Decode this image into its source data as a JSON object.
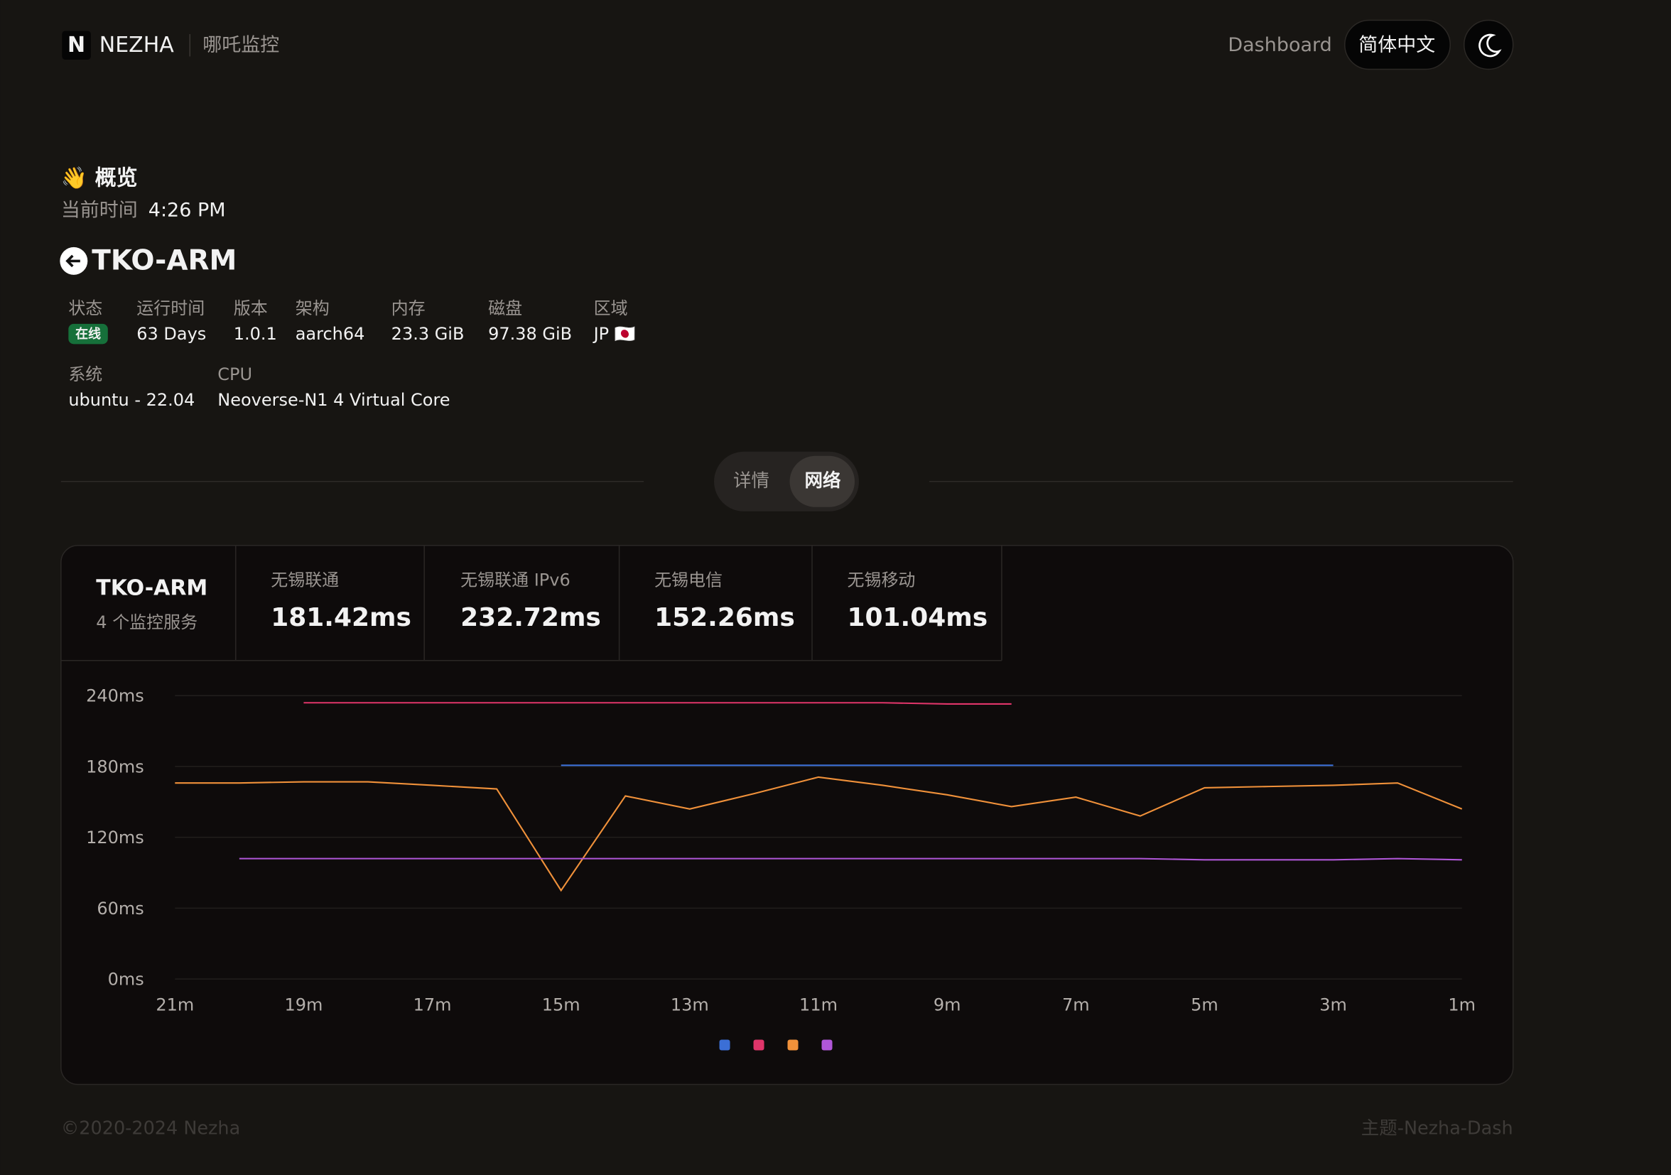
{
  "header": {
    "logo": "N",
    "brand": "NEZHA",
    "subtitle": "哪吒监控",
    "nav": "Dashboard",
    "language": "简体中文"
  },
  "overview": {
    "title": "👋 概览",
    "time_label": "当前时间",
    "time": "4:26 PM"
  },
  "server": {
    "name": "TKO-ARM",
    "fields": [
      {
        "label": "状态",
        "value": "在线"
      },
      {
        "label": "运行时间",
        "value": "63 Days"
      },
      {
        "label": "版本",
        "value": "1.0.1"
      },
      {
        "label": "架构",
        "value": "aarch64"
      },
      {
        "label": "内存",
        "value": "23.3 GiB"
      },
      {
        "label": "磁盘",
        "value": "97.38 GiB"
      },
      {
        "label": "区域",
        "value": "JP 🇯🇵"
      },
      {
        "label": "系统",
        "value": "ubuntu - 22.04"
      },
      {
        "label": "CPU",
        "value": "Neoverse-N1 4 Virtual Core"
      }
    ]
  },
  "tabs": [
    "详情",
    "网络"
  ],
  "monitor": {
    "server": "TKO-ARM",
    "count": "4 个监控服务",
    "services": [
      {
        "name": "无锡联通",
        "latency": "181.42ms"
      },
      {
        "name": "无锡联通 IPv6",
        "latency": "232.72ms"
      },
      {
        "name": "无锡电信",
        "latency": "152.26ms"
      },
      {
        "name": "无锡移动",
        "latency": "101.04ms"
      }
    ]
  },
  "chart_data": {
    "type": "line",
    "x": [
      21,
      20,
      19,
      18,
      17,
      16,
      15,
      14,
      13,
      12,
      11,
      10,
      9,
      8,
      7,
      6,
      5,
      4,
      3,
      2,
      1
    ],
    "xlim": [
      21,
      1
    ],
    "xticks": [
      {
        "value": 21,
        "label": "21m"
      },
      {
        "value": 19,
        "label": "19m"
      },
      {
        "value": 17,
        "label": "17m"
      },
      {
        "value": 15,
        "label": "15m"
      },
      {
        "value": 13,
        "label": "13m"
      },
      {
        "value": 11,
        "label": "11m"
      },
      {
        "value": 9,
        "label": "9m"
      },
      {
        "value": 7,
        "label": "7m"
      },
      {
        "value": 5,
        "label": "5m"
      },
      {
        "value": 3,
        "label": "3m"
      },
      {
        "value": 1,
        "label": "1m"
      }
    ],
    "ylim": [
      0,
      240
    ],
    "yticks": [
      {
        "value": 0,
        "label": "0ms"
      },
      {
        "value": 60,
        "label": "60ms"
      },
      {
        "value": 120,
        "label": "120ms"
      },
      {
        "value": 180,
        "label": "180ms"
      },
      {
        "value": 240,
        "label": "240ms"
      }
    ],
    "grid": true,
    "series": [
      {
        "color": "#3b6fd6",
        "values": [
          null,
          null,
          null,
          null,
          null,
          null,
          181,
          181,
          181,
          181,
          181,
          181,
          181,
          181,
          181,
          181,
          181,
          181,
          181,
          null,
          null
        ]
      },
      {
        "color": "#e0356a",
        "values": [
          null,
          null,
          234,
          234,
          234,
          234,
          234,
          234,
          234,
          234,
          234,
          234,
          233,
          233,
          null,
          null,
          null,
          null,
          null,
          null,
          null
        ]
      },
      {
        "color": "#f0913a",
        "values": [
          166,
          166,
          167,
          167,
          164,
          161,
          75,
          155,
          144,
          157,
          171,
          164,
          156,
          146,
          154,
          138,
          162,
          163,
          164,
          166,
          144
        ]
      },
      {
        "color": "#b057d8",
        "values": [
          null,
          102,
          102,
          102,
          102,
          102,
          102,
          102,
          102,
          102,
          102,
          102,
          102,
          102,
          102,
          102,
          101,
          101,
          101,
          102,
          101
        ]
      }
    ]
  },
  "footer": {
    "copyright": "©2020-2024 Nezha",
    "theme": "主题-Nezha-Dash"
  }
}
